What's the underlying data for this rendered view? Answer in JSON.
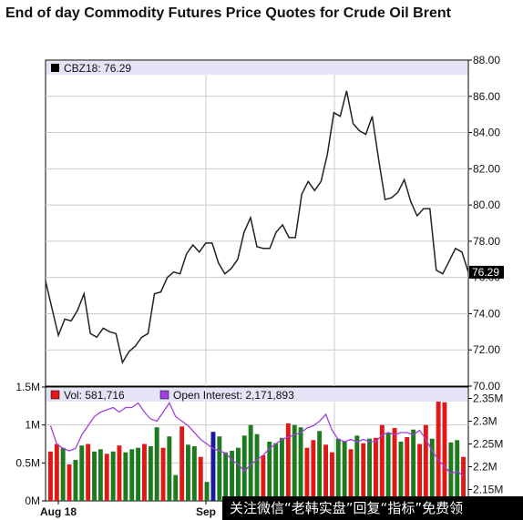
{
  "chart_title": "End of day Commodity Futures Price Quotes for Crude Oil Brent",
  "watermark_text": "关注微信“老韩实盘”回复“指标”免费领",
  "colors": {
    "price_line": "#222222",
    "up_bar": "#1e7a1e",
    "down_bar": "#e01818",
    "blue_bar": "#1a1aa0",
    "open_interest": "#a040e0",
    "legend_bg": "#e4e4f6",
    "frame": "#000000",
    "grid": "#cccccc"
  },
  "chart_data": [
    {
      "type": "line",
      "symbol": "CBZ18",
      "legend": "CBZ18: 76.29",
      "last_value": 76.29,
      "last_label": "76.29",
      "ylim": [
        70,
        88
      ],
      "y_ticks": [
        70,
        72,
        74,
        76,
        78,
        80,
        82,
        84,
        86,
        88
      ],
      "y_tick_labels": [
        "70.00",
        "72.00",
        "74.00",
        "76.00",
        "78.00",
        "80.00",
        "82.00",
        "84.00",
        "86.00",
        "88.00"
      ],
      "values": [
        75.8,
        74.3,
        72.8,
        73.7,
        73.6,
        74.2,
        75.1,
        72.9,
        72.7,
        73.2,
        73.0,
        72.9,
        71.3,
        71.9,
        72.2,
        72.7,
        72.9,
        75.1,
        75.2,
        76.0,
        76.3,
        76.2,
        77.3,
        77.8,
        77.4,
        77.9,
        77.9,
        76.8,
        76.2,
        76.5,
        77.0,
        78.5,
        79.3,
        77.7,
        77.6,
        77.6,
        78.5,
        78.9,
        78.2,
        78.2,
        80.6,
        81.3,
        80.8,
        81.3,
        82.8,
        85.1,
        84.9,
        86.3,
        84.5,
        84.1,
        83.9,
        84.9,
        82.5,
        80.3,
        80.4,
        80.7,
        81.4,
        80.2,
        79.4,
        79.8,
        79.8,
        76.4,
        76.2,
        76.9,
        77.6,
        77.4,
        76.29
      ]
    },
    {
      "type": "bar",
      "volume_legend": "Vol: 581,716",
      "open_interest_legend": "Open Interest: 2,171,893",
      "x_tick_labels": [
        "Aug 18",
        "Sep"
      ],
      "vol_ylim": [
        0,
        1500000
      ],
      "vol_tick_labels": [
        "0M",
        "0.5M",
        "1M",
        "1.5M"
      ],
      "vol_ticks": [
        0,
        500000,
        1000000,
        1500000
      ],
      "oi_ylim": [
        2125000,
        2375000
      ],
      "oi_ticks": [
        2150000,
        2200000,
        2250000,
        2300000,
        2350000
      ],
      "oi_tick_labels": [
        "2.15M",
        "2.2M",
        "2.25M",
        "2.3M",
        "2.35M"
      ],
      "volume": [
        650000,
        750000,
        700000,
        480000,
        540000,
        730000,
        750000,
        650000,
        680000,
        620000,
        650000,
        730000,
        640000,
        680000,
        700000,
        750000,
        720000,
        970000,
        700000,
        850000,
        340000,
        980000,
        740000,
        720000,
        580000,
        250000,
        910000,
        850000,
        640000,
        660000,
        700000,
        860000,
        1000000,
        880000,
        600000,
        780000,
        760000,
        830000,
        1020000,
        1000000,
        970000,
        700000,
        800000,
        920000,
        740000,
        640000,
        820000,
        780000,
        680000,
        860000,
        760000,
        820000,
        830000,
        1000000,
        900000,
        960000,
        780000,
        840000,
        940000,
        750000,
        1000000,
        820000,
        1370000,
        1300000,
        770000,
        800000,
        580000
      ],
      "bar_colors": [
        "r",
        "r",
        "g",
        "r",
        "g",
        "g",
        "r",
        "g",
        "g",
        "r",
        "g",
        "r",
        "g",
        "g",
        "g",
        "r",
        "g",
        "g",
        "r",
        "g",
        "g",
        "r",
        "g",
        "g",
        "r",
        "g",
        "b",
        "g",
        "g",
        "g",
        "g",
        "g",
        "g",
        "g",
        "r",
        "g",
        "g",
        "g",
        "r",
        "g",
        "g",
        "r",
        "r",
        "g",
        "r",
        "r",
        "g",
        "g",
        "r",
        "g",
        "r",
        "g",
        "r",
        "r",
        "g",
        "r",
        "g",
        "r",
        "g",
        "r",
        "r",
        "g",
        "r",
        "r",
        "g",
        "g",
        "r"
      ],
      "open_interest": [
        2290000,
        2250000,
        2240000,
        2235000,
        2240000,
        2270000,
        2290000,
        2310000,
        2320000,
        2325000,
        2330000,
        2320000,
        2330000,
        2330000,
        2340000,
        2320000,
        2305000,
        2300000,
        2320000,
        2340000,
        2310000,
        2300000,
        2290000,
        2275000,
        2260000,
        2250000,
        2240000,
        2235000,
        2230000,
        2215000,
        2205000,
        2190000,
        2205000,
        2215000,
        2225000,
        2240000,
        2250000,
        2260000,
        2265000,
        2270000,
        2275000,
        2285000,
        2290000,
        2300000,
        2315000,
        2280000,
        2260000,
        2255000,
        2260000,
        2255000,
        2260000,
        2255000,
        2255000,
        2270000,
        2275000,
        2270000,
        2275000,
        2275000,
        2270000,
        2280000,
        2260000,
        2235000,
        2215000,
        2200000,
        2185000,
        2190000,
        2180000
      ]
    }
  ]
}
